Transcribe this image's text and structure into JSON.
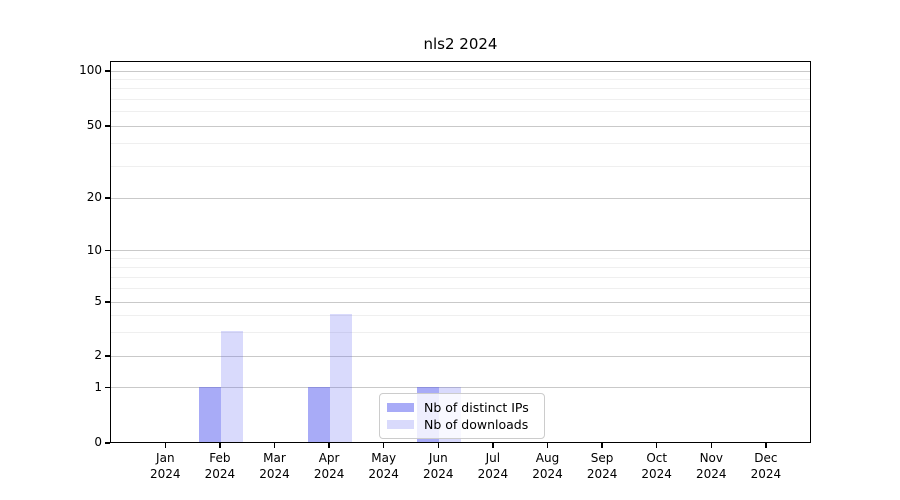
{
  "chart_data": {
    "type": "bar",
    "title": "nls2 2024",
    "categories": [
      "Jan 2024",
      "Feb 2024",
      "Mar 2024",
      "Apr 2024",
      "May 2024",
      "Jun 2024",
      "Jul 2024",
      "Aug 2024",
      "Sep 2024",
      "Oct 2024",
      "Nov 2024",
      "Dec 2024"
    ],
    "series": [
      {
        "name": "Nb of distinct IPs",
        "color": "rgba(81,87,240,0.5)",
        "values": [
          0,
          1,
          0,
          1,
          0,
          1,
          0,
          0,
          0,
          0,
          0,
          0
        ]
      },
      {
        "name": "Nb of downloads",
        "color": "rgba(81,87,240,0.22)",
        "values": [
          0,
          3,
          0,
          4,
          0,
          1,
          0,
          0,
          0,
          0,
          0,
          0
        ]
      }
    ],
    "y_ticks": [
      0,
      1,
      2,
      5,
      10,
      20,
      50,
      100
    ],
    "ylim": [
      0,
      100
    ],
    "yscale": "log-like with linear 0-1 segment",
    "grid": "horizontal major and minor gridlines",
    "legend_position": "inside bottom-center",
    "colors": {
      "bar_distinct_ips": "#a8abf7",
      "bar_downloads": "#dadcfb",
      "major_grid": "#c9c9c9",
      "minor_grid": "#efefef",
      "axis": "#000000"
    }
  }
}
